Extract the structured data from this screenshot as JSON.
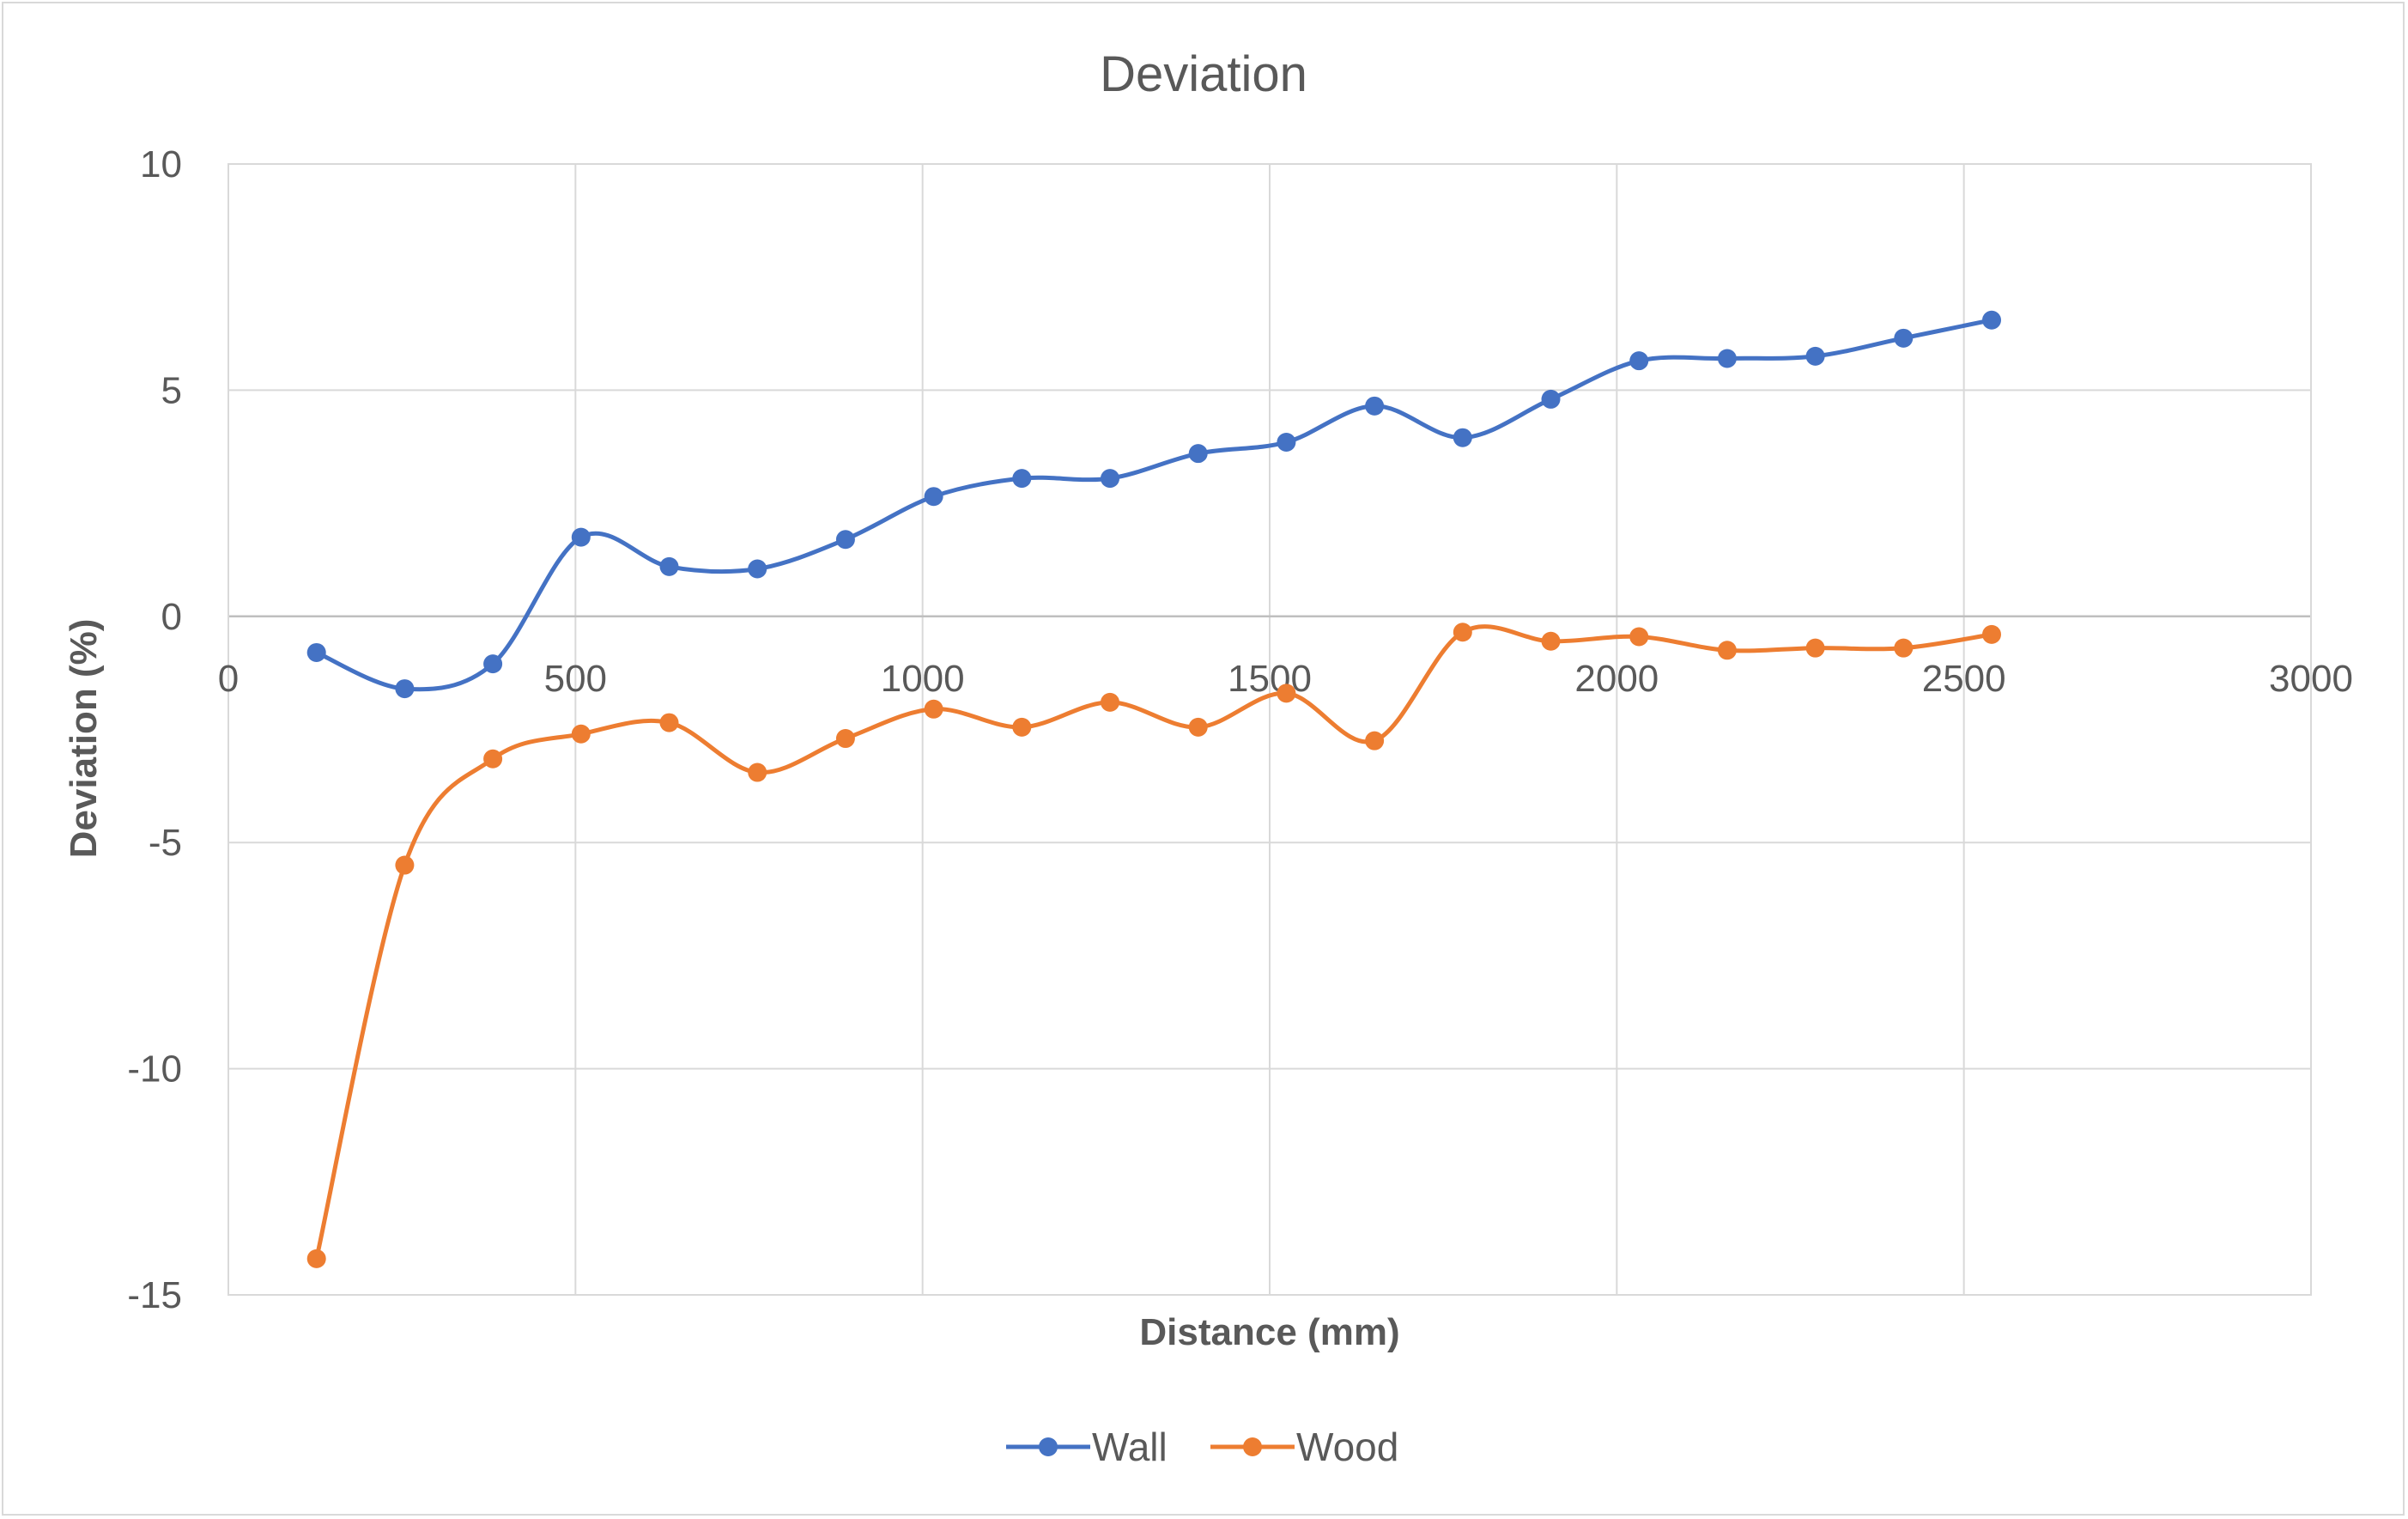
{
  "chart_data": {
    "type": "scatter",
    "title": "Deviation",
    "xlabel": "Distance (mm)",
    "ylabel": "Deviation (%)",
    "xlim": [
      0,
      3000
    ],
    "ylim": [
      -15,
      10
    ],
    "x_ticks": [
      "0",
      "500",
      "1000",
      "1500",
      "2000",
      "2500",
      "3000"
    ],
    "y_ticks": [
      "10",
      "5",
      "0",
      "-5",
      "-10",
      "-15"
    ],
    "grid": true,
    "smooth_lines": true,
    "legend_position": "bottom",
    "series": [
      {
        "name": "Wall",
        "color": "#4472c4",
        "x": [
          127,
          254,
          381,
          508,
          635,
          762,
          889,
          1016,
          1143,
          1270,
          1397,
          1524,
          1651,
          1778,
          1905,
          2032,
          2159,
          2286,
          2413,
          2540
        ],
        "y": [
          -0.8,
          -1.6,
          -1.05,
          1.75,
          1.1,
          1.05,
          1.7,
          2.65,
          3.05,
          3.05,
          3.6,
          3.85,
          4.65,
          3.95,
          4.8,
          5.65,
          5.7,
          5.75,
          6.15,
          6.55
        ]
      },
      {
        "name": "Wood",
        "color": "#ed7d31",
        "x": [
          127,
          254,
          381,
          508,
          635,
          762,
          889,
          1016,
          1143,
          1270,
          1397,
          1524,
          1651,
          1778,
          1905,
          2032,
          2159,
          2286,
          2413,
          2540
        ],
        "y": [
          -14.2,
          -5.5,
          -3.15,
          -2.6,
          -2.35,
          -3.45,
          -2.7,
          -2.05,
          -2.45,
          -1.9,
          -2.45,
          -1.7,
          -2.75,
          -0.35,
          -0.55,
          -0.45,
          -0.75,
          -0.7,
          -0.7,
          -0.4
        ]
      }
    ]
  }
}
